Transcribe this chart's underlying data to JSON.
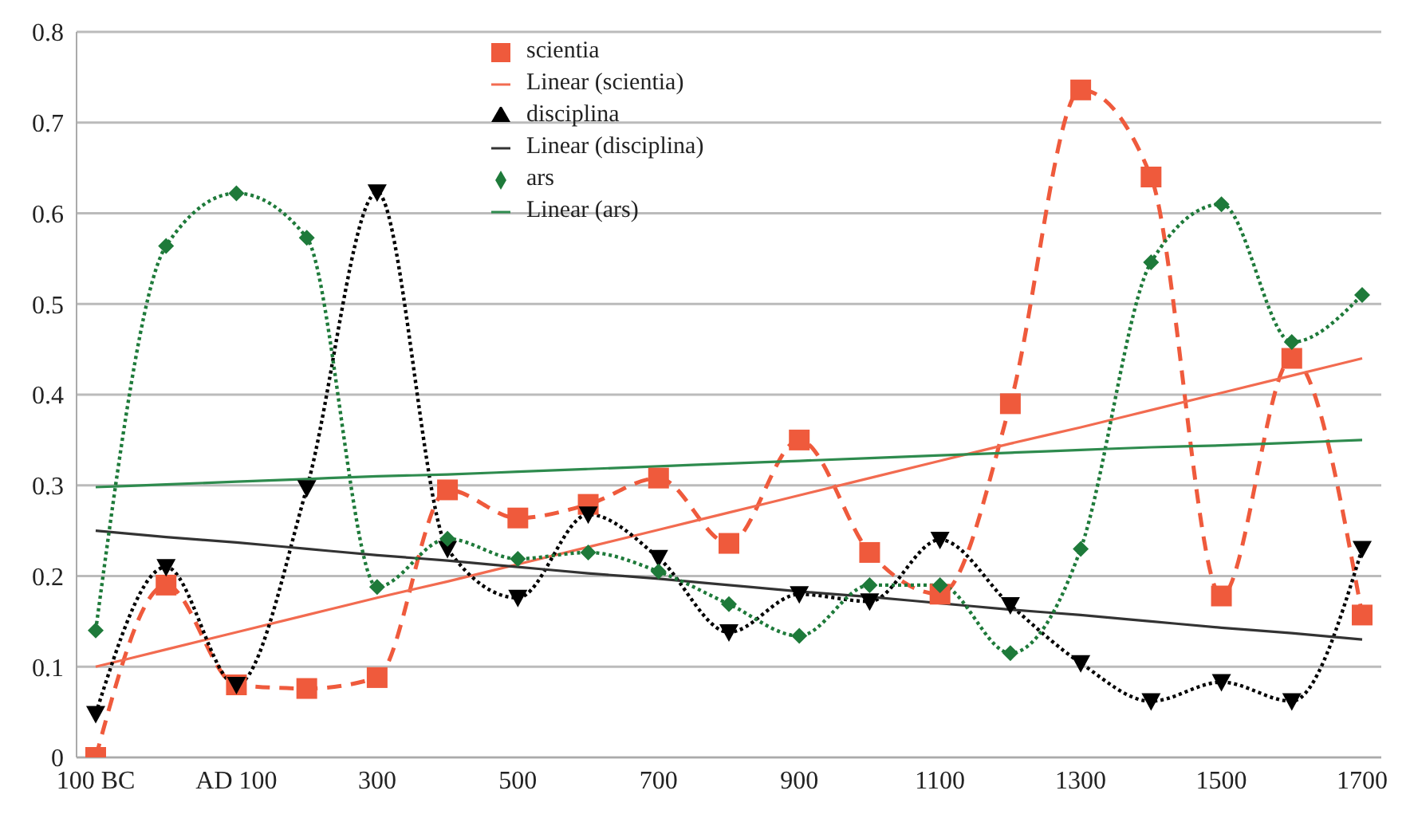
{
  "chart_data": {
    "type": "line",
    "categories": [
      "100 BC",
      null,
      "AD 100",
      null,
      "300",
      null,
      "500",
      null,
      "700",
      null,
      "900",
      null,
      "1100",
      null,
      "1300",
      null,
      "1500",
      null,
      "1700"
    ],
    "ylim": [
      0,
      0.8
    ],
    "yticks": [
      0,
      0.1,
      0.2,
      0.3,
      0.4,
      0.5,
      0.6,
      0.7,
      0.8
    ],
    "grid": "y",
    "legend": "top",
    "series": [
      {
        "name": "scientia",
        "color": "#ef5a3c",
        "marker": "square",
        "line_style": "dashed",
        "values": [
          0,
          0.19,
          0.08,
          0.076,
          0.088,
          0.295,
          0.264,
          0.279,
          0.308,
          0.236,
          0.35,
          0.226,
          0.18,
          0.39,
          0.736,
          0.64,
          0.178,
          0.44,
          0.157
        ]
      },
      {
        "name": "Linear (scientia)",
        "color": "#f26b50",
        "marker": "none",
        "line_style": "solid",
        "values": [
          0.1,
          0.119,
          0.138,
          0.157,
          0.176,
          0.194,
          0.213,
          0.232,
          0.251,
          0.27,
          0.289,
          0.308,
          0.327,
          0.346,
          0.364,
          0.383,
          0.402,
          0.421,
          0.44
        ]
      },
      {
        "name": "disciplina",
        "color": "#000000",
        "marker": "triangle",
        "line_style": "dotted",
        "values": [
          0.048,
          0.21,
          0.08,
          0.297,
          0.623,
          0.23,
          0.176,
          0.268,
          0.22,
          0.138,
          0.18,
          0.172,
          0.24,
          0.168,
          0.104,
          0.062,
          0.083,
          0.062,
          0.23
        ]
      },
      {
        "name": "Linear (disciplina)",
        "color": "#333333",
        "marker": "none",
        "line_style": "solid",
        "values": [
          0.25,
          0.243,
          0.237,
          0.23,
          0.223,
          0.217,
          0.21,
          0.203,
          0.197,
          0.19,
          0.183,
          0.177,
          0.17,
          0.163,
          0.157,
          0.15,
          0.143,
          0.137,
          0.13
        ]
      },
      {
        "name": "ars",
        "color": "#1e7a3a",
        "marker": "diamond",
        "line_style": "dotted",
        "values": [
          0.14,
          0.564,
          0.622,
          0.573,
          0.188,
          0.241,
          0.219,
          0.226,
          0.205,
          0.169,
          0.134,
          0.19,
          0.19,
          0.115,
          0.23,
          0.546,
          0.61,
          0.458,
          0.51
        ]
      },
      {
        "name": "Linear (ars)",
        "color": "#2e8b4e",
        "marker": "none",
        "line_style": "solid",
        "values": [
          0.298,
          0.301,
          0.304,
          0.307,
          0.31,
          0.312,
          0.315,
          0.318,
          0.321,
          0.324,
          0.327,
          0.33,
          0.333,
          0.336,
          0.339,
          0.342,
          0.344,
          0.347,
          0.35
        ]
      }
    ]
  }
}
